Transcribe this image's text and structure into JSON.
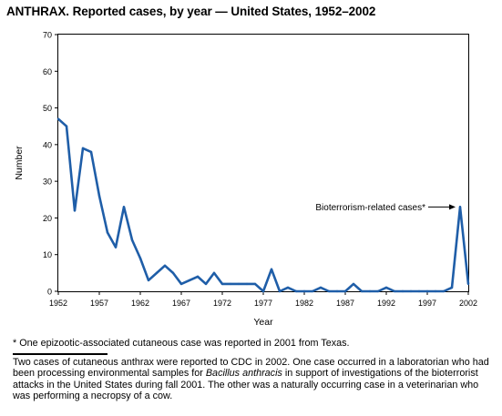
{
  "chart_data": {
    "type": "line",
    "title": "ANTHRAX. Reported cases, by year — United States, 1952–2002",
    "xlabel": "Year",
    "ylabel": "Number",
    "xlim": [
      1952,
      2002
    ],
    "ylim": [
      0,
      70
    ],
    "x_ticks": [
      1952,
      1957,
      1962,
      1967,
      1972,
      1977,
      1982,
      1987,
      1992,
      1997,
      2002
    ],
    "y_ticks": [
      0,
      10,
      20,
      30,
      40,
      50,
      60,
      70
    ],
    "grid": false,
    "line_color": "#1f5ea8",
    "series": [
      {
        "x": [
          1952,
          1953,
          1954,
          1955,
          1956,
          1957,
          1958,
          1959,
          1960,
          1961,
          1962,
          1963,
          1964,
          1965,
          1966,
          1967,
          1968,
          1969,
          1970,
          1971,
          1972,
          1973,
          1974,
          1975,
          1976,
          1977,
          1978,
          1979,
          1980,
          1981,
          1982,
          1983,
          1984,
          1985,
          1986,
          1987,
          1988,
          1989,
          1990,
          1991,
          1992,
          1993,
          1994,
          1995,
          1996,
          1997,
          1998,
          1999,
          2000,
          2001,
          2002
        ],
        "y": [
          47,
          45,
          22,
          39,
          38,
          26,
          16,
          12,
          23,
          14,
          9,
          3,
          5,
          7,
          5,
          2,
          3,
          4,
          2,
          5,
          2,
          2,
          2,
          2,
          2,
          0,
          6,
          0,
          1,
          0,
          0,
          0,
          1,
          0,
          0,
          0,
          2,
          0,
          0,
          0,
          1,
          0,
          0,
          0,
          0,
          0,
          0,
          0,
          1,
          23,
          2
        ]
      }
    ],
    "annotations": [
      {
        "text": "Bioterrorism-related cases*",
        "points_to": {
          "x": 2001,
          "y": 23
        }
      }
    ]
  },
  "footnotes": {
    "star": "* One epizootic-associated cutaneous case was reported in 2001 from Texas.",
    "body_before": "Two cases of cutaneous anthrax were reported to CDC in 2002. One case occurred in a laboratorian who had been processing environmental samples for ",
    "body_italic": "Bacillus anthracis",
    "body_after": " in support of investigations of the bioterrorist attacks in the United States during fall 2001. The other was a naturally occurring case in a veterinarian who was performing a necropsy of a cow."
  }
}
